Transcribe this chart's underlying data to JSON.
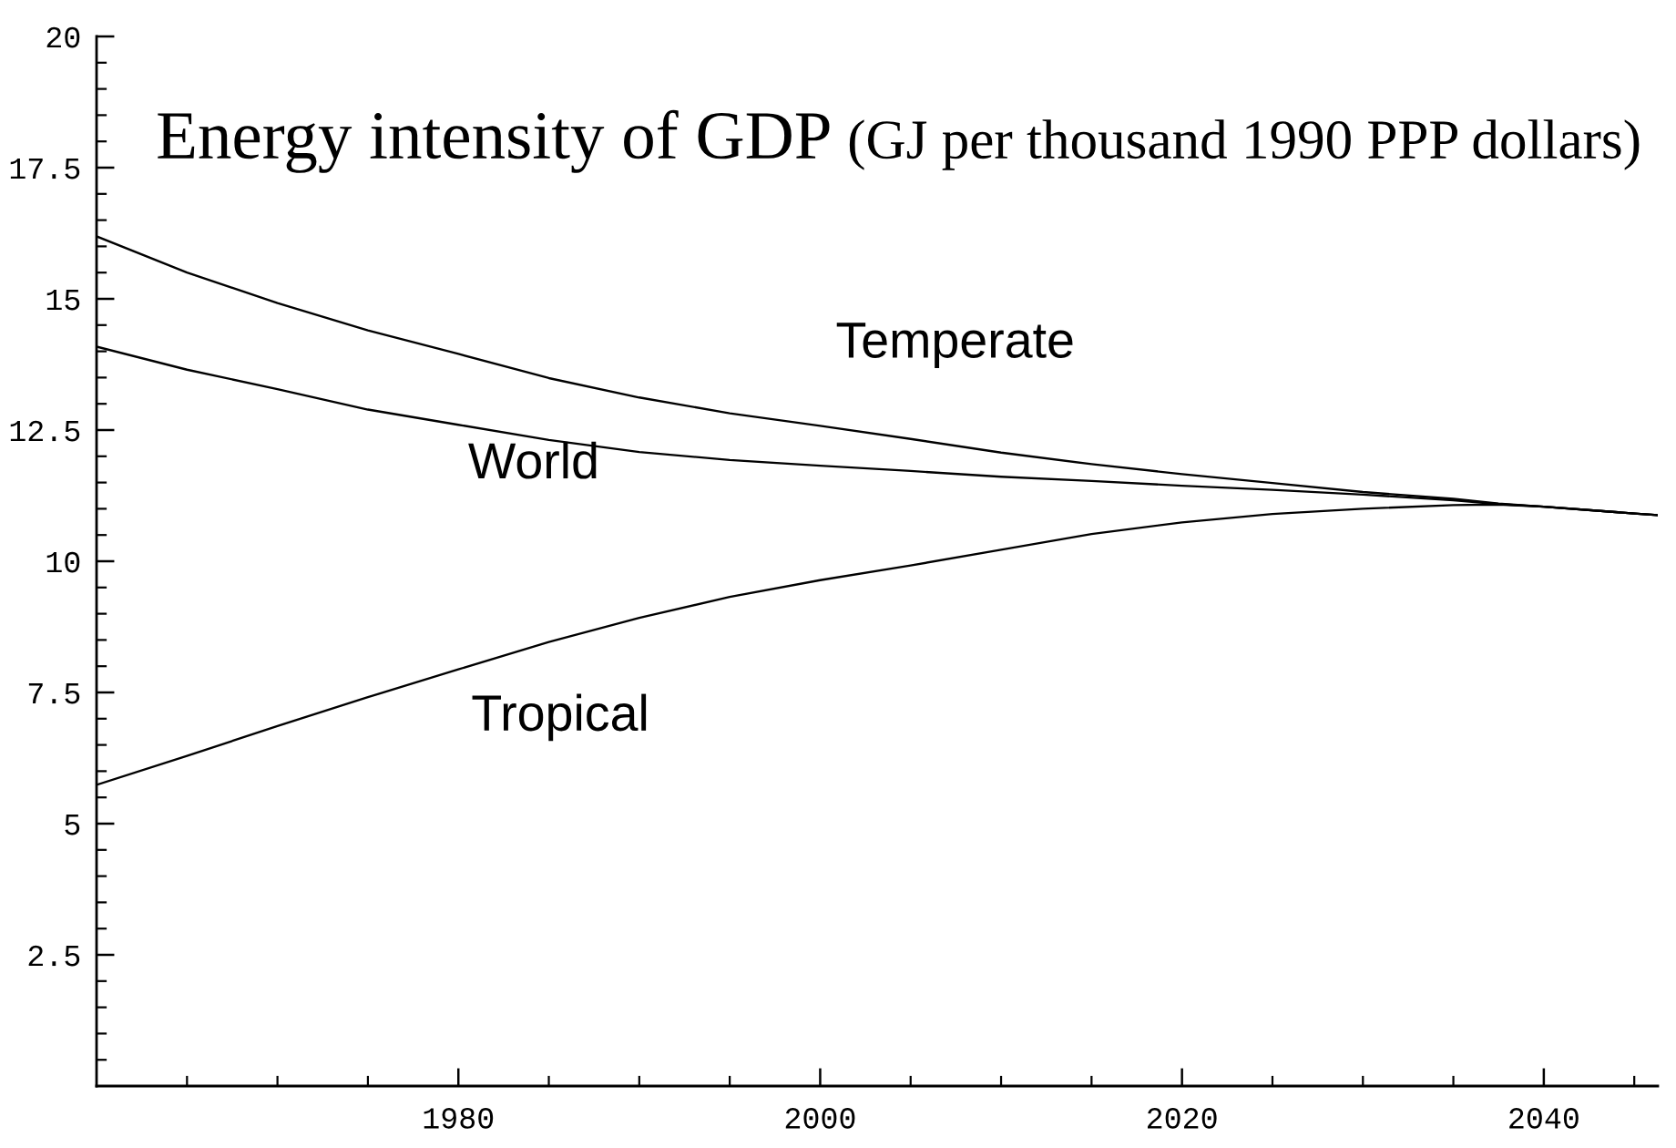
{
  "chart_data": {
    "type": "line",
    "title": "Energy intensity of GDP",
    "subtitle": "(GJ per thousand 1990 PPP dollars)",
    "x": [
      1960,
      1965,
      1970,
      1975,
      1980,
      1985,
      1990,
      1995,
      2000,
      2005,
      2010,
      2015,
      2020,
      2025,
      2030,
      2035,
      2037.5,
      2040,
      2045,
      2046.3
    ],
    "series": [
      {
        "name": "Temperate",
        "color": "#000000",
        "values": [
          16.19,
          15.5,
          14.92,
          14.4,
          13.95,
          13.49,
          13.12,
          12.82,
          12.58,
          12.33,
          12.07,
          11.85,
          11.66,
          11.49,
          11.32,
          11.19,
          11.1,
          11.04,
          10.91,
          10.88
        ]
      },
      {
        "name": "World",
        "color": "#000000",
        "values": [
          14.09,
          13.65,
          13.28,
          12.89,
          12.6,
          12.31,
          12.08,
          11.93,
          11.82,
          11.72,
          11.61,
          11.53,
          11.44,
          11.36,
          11.27,
          11.16,
          11.09,
          11.04,
          10.91,
          10.88
        ]
      },
      {
        "name": "Tropical",
        "color": "#000000",
        "values": [
          5.74,
          6.29,
          6.86,
          7.41,
          7.94,
          8.46,
          8.92,
          9.32,
          9.64,
          9.92,
          10.22,
          10.52,
          10.74,
          10.9,
          11.0,
          11.07,
          11.08,
          11.04,
          10.91,
          10.88
        ]
      }
    ],
    "xlim": [
      1960,
      2046.3
    ],
    "ylim": [
      0,
      20
    ],
    "xticks": [
      {
        "value": 1965,
        "label": null
      },
      {
        "value": 1970,
        "label": null
      },
      {
        "value": 1975,
        "label": null
      },
      1980,
      {
        "value": 1985,
        "label": null
      },
      {
        "value": 1990,
        "label": null
      },
      {
        "value": 1995,
        "label": null
      },
      2000,
      {
        "value": 2005,
        "label": null
      },
      {
        "value": 2010,
        "label": null
      },
      {
        "value": 2015,
        "label": null
      },
      2020,
      {
        "value": 2025,
        "label": null
      },
      {
        "value": 2030,
        "label": null
      },
      {
        "value": 2035,
        "label": null
      },
      2040,
      {
        "value": 2045,
        "label": null
      }
    ],
    "yticks": [
      {
        "value": 0.5,
        "label": null
      },
      {
        "value": 1,
        "label": null
      },
      {
        "value": 1.5,
        "label": null
      },
      {
        "value": 2,
        "label": null
      },
      2.5,
      {
        "value": 3,
        "label": null
      },
      {
        "value": 3.5,
        "label": null
      },
      {
        "value": 4,
        "label": null
      },
      {
        "value": 4.5,
        "label": null
      },
      5,
      {
        "value": 5.5,
        "label": null
      },
      {
        "value": 6,
        "label": null
      },
      {
        "value": 6.5,
        "label": null
      },
      {
        "value": 7,
        "label": null
      },
      7.5,
      {
        "value": 8,
        "label": null
      },
      {
        "value": 8.5,
        "label": null
      },
      {
        "value": 9,
        "label": null
      },
      {
        "value": 9.5,
        "label": null
      },
      10,
      {
        "value": 10.5,
        "label": null
      },
      {
        "value": 11,
        "label": null
      },
      {
        "value": 11.5,
        "label": null
      },
      {
        "value": 12,
        "label": null
      },
      12.5,
      {
        "value": 13,
        "label": null
      },
      {
        "value": 13.5,
        "label": null
      },
      {
        "value": 14,
        "label": null
      },
      {
        "value": 14.5,
        "label": null
      },
      15,
      {
        "value": 15.5,
        "label": null
      },
      {
        "value": 16,
        "label": null
      },
      {
        "value": 16.5,
        "label": null
      },
      {
        "value": 17,
        "label": null
      },
      17.5,
      {
        "value": 18,
        "label": null
      },
      {
        "value": 18.5,
        "label": null
      },
      {
        "value": 19,
        "label": null
      },
      {
        "value": 19.5,
        "label": null
      },
      20
    ],
    "line_style": "solid"
  }
}
